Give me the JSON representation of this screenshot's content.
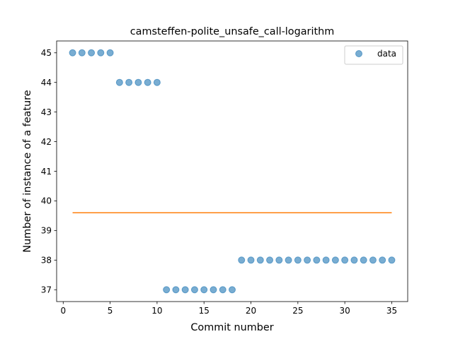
{
  "chart_data": {
    "type": "scatter",
    "title": "camsteffen-polite_unsafe_call-logarithm",
    "xlabel": "Commit number",
    "ylabel": "Number of instance of a feature",
    "xlim": [
      -0.7,
      36.7
    ],
    "ylim": [
      36.6,
      45.4
    ],
    "xticks": [
      0,
      5,
      10,
      15,
      20,
      25,
      30,
      35
    ],
    "yticks": [
      37,
      38,
      39,
      40,
      41,
      42,
      43,
      44,
      45
    ],
    "legend_position": "top-right",
    "series": [
      {
        "name": "data",
        "kind": "scatter",
        "color": "#1f77b4",
        "x": [
          1,
          2,
          3,
          4,
          5,
          6,
          7,
          8,
          9,
          10,
          11,
          12,
          13,
          14,
          15,
          16,
          17,
          18,
          19,
          20,
          21,
          22,
          23,
          24,
          25,
          26,
          27,
          28,
          29,
          30,
          31,
          32,
          33,
          34,
          35
        ],
        "y": [
          45,
          45,
          45,
          45,
          45,
          44,
          44,
          44,
          44,
          44,
          37,
          37,
          37,
          37,
          37,
          37,
          37,
          37,
          38,
          38,
          38,
          38,
          38,
          38,
          38,
          38,
          38,
          38,
          38,
          38,
          38,
          38,
          38,
          38,
          38
        ]
      },
      {
        "kind": "line",
        "color": "#ff7f0e",
        "x": [
          1,
          35
        ],
        "y": [
          39.6,
          39.6
        ]
      }
    ]
  }
}
